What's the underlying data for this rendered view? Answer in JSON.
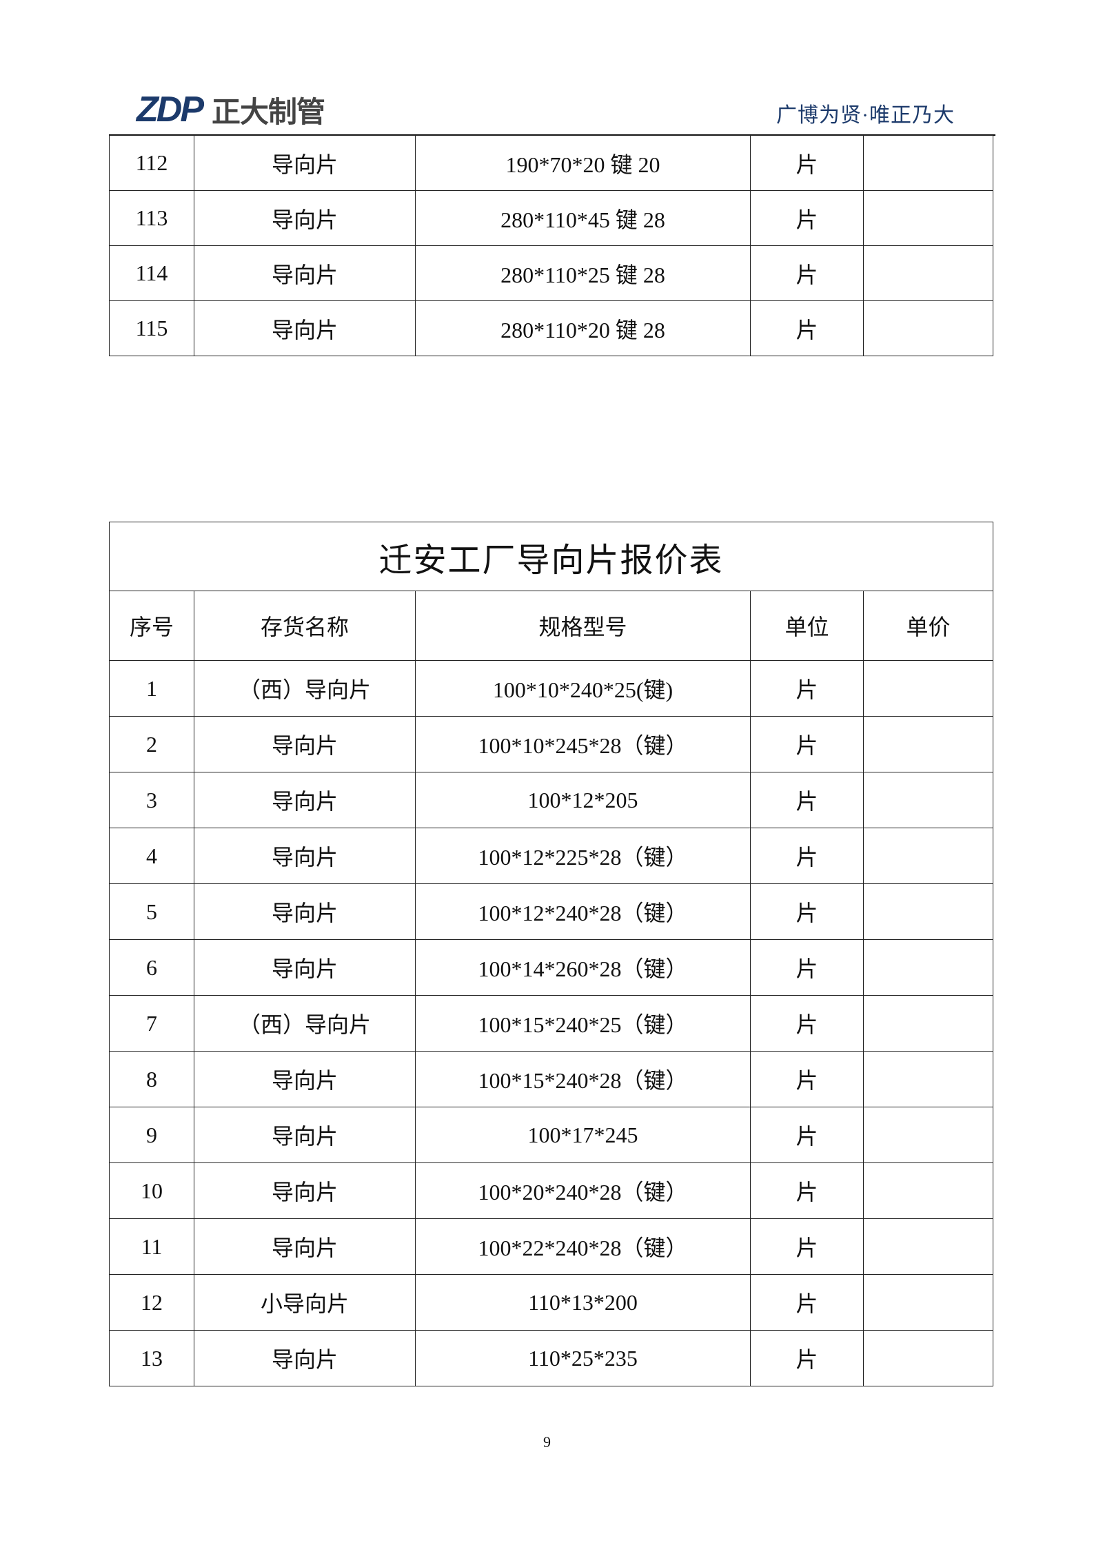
{
  "header": {
    "logo_en": "ZDP",
    "logo_cn": "正大制管",
    "slogan": "广博为贤·唯正乃大",
    "brand_color": "#1c3a6b"
  },
  "table_prev": {
    "rows": [
      [
        "112",
        "导向片",
        "190*70*20 键 20",
        "片",
        ""
      ],
      [
        "113",
        "导向片",
        "280*110*45 键 28",
        "片",
        ""
      ],
      [
        "114",
        "导向片",
        "280*110*25 键 28",
        "片",
        ""
      ],
      [
        "115",
        "导向片",
        "280*110*20 键 28",
        "片",
        ""
      ]
    ]
  },
  "table_main": {
    "title": "迁安工厂导向片报价表",
    "columns": [
      "序号",
      "存货名称",
      "规格型号",
      "单位",
      "单价"
    ],
    "rows": [
      [
        "1",
        "（西）导向片",
        "100*10*240*25(键)",
        "片",
        ""
      ],
      [
        "2",
        "导向片",
        "100*10*245*28（键）",
        "片",
        ""
      ],
      [
        "3",
        "导向片",
        "100*12*205",
        "片",
        ""
      ],
      [
        "4",
        "导向片",
        "100*12*225*28（键）",
        "片",
        ""
      ],
      [
        "5",
        "导向片",
        "100*12*240*28（键）",
        "片",
        ""
      ],
      [
        "6",
        "导向片",
        "100*14*260*28（键）",
        "片",
        ""
      ],
      [
        "7",
        "（西）导向片",
        "100*15*240*25（键）",
        "片",
        ""
      ],
      [
        "8",
        "导向片",
        "100*15*240*28（键）",
        "片",
        ""
      ],
      [
        "9",
        "导向片",
        "100*17*245",
        "片",
        ""
      ],
      [
        "10",
        "导向片",
        "100*20*240*28（键）",
        "片",
        ""
      ],
      [
        "11",
        "导向片",
        "100*22*240*28（键）",
        "片",
        ""
      ],
      [
        "12",
        "小导向片",
        "110*13*200",
        "片",
        ""
      ],
      [
        "13",
        "导向片",
        "110*25*235",
        "片",
        ""
      ]
    ]
  },
  "footer": {
    "page_number": "9"
  }
}
